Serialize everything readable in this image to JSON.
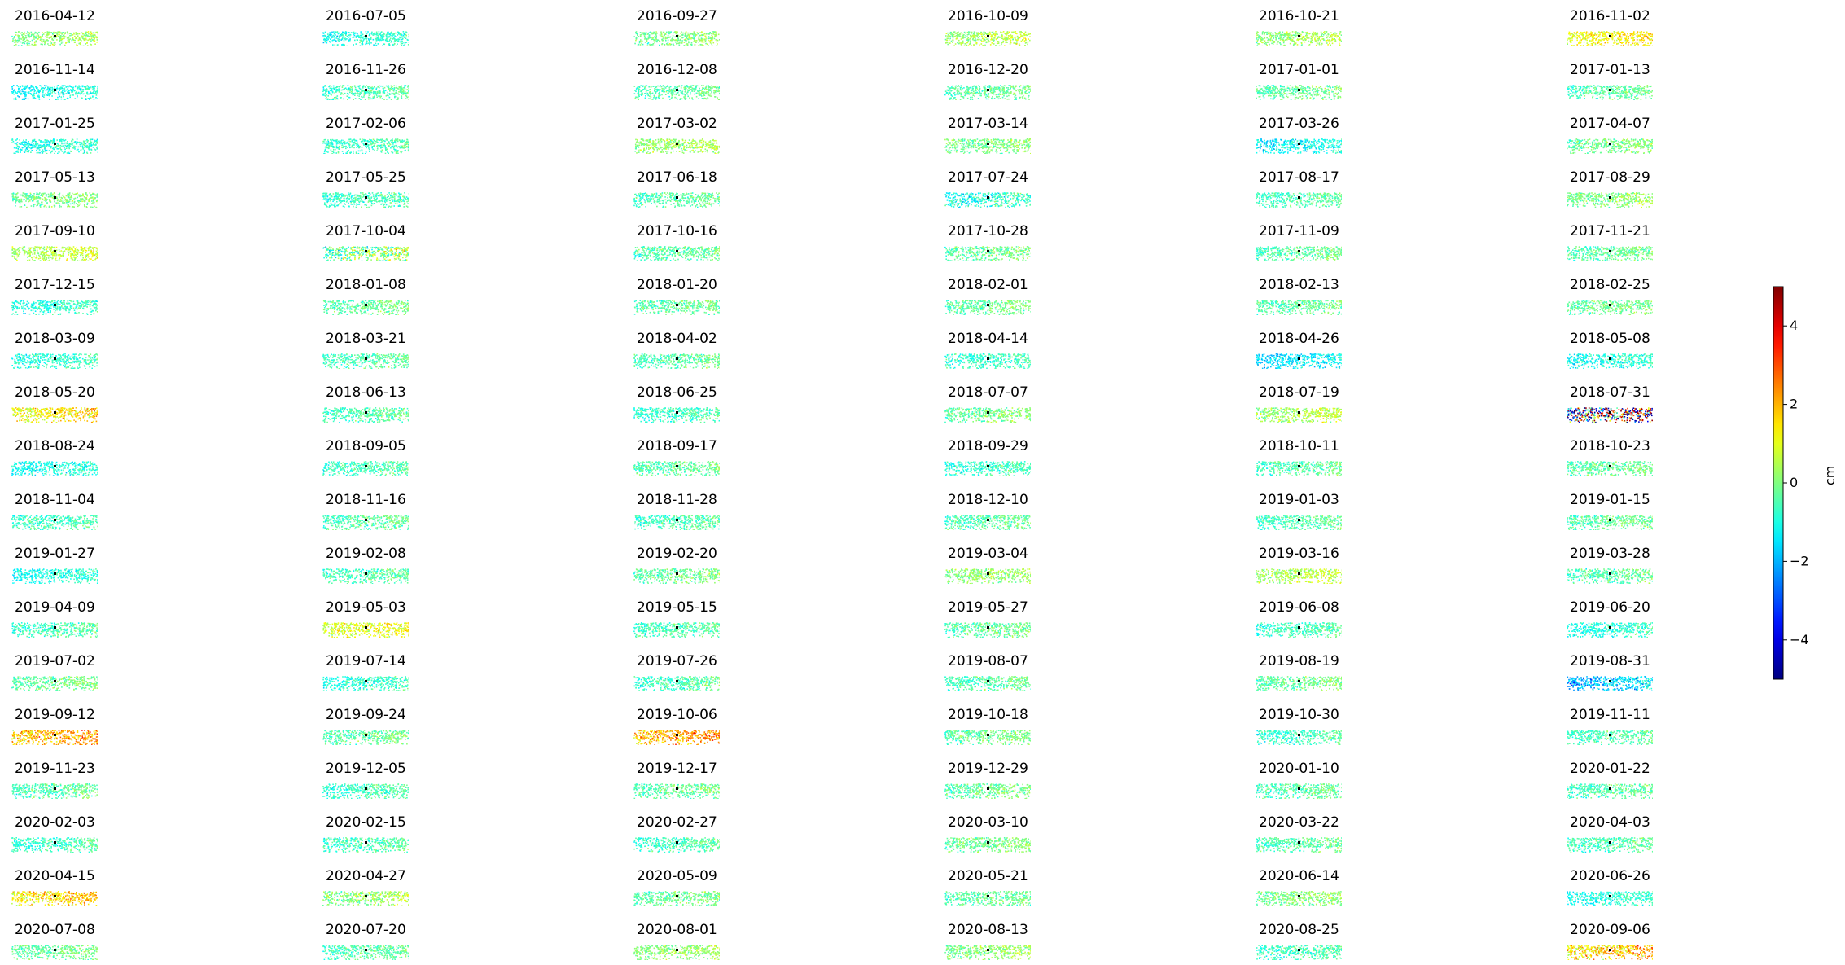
{
  "chart_data": {
    "type": "heatmap",
    "description_type": "small-multiples displacement maps",
    "grid": false,
    "axes_visible": false,
    "colormap": "jet",
    "colorbar": {
      "label": "cm",
      "range": [
        -5,
        5
      ],
      "ticks": [
        -4,
        -2,
        0,
        2,
        4
      ],
      "tick_labels": [
        "−4",
        "−2",
        "0",
        "2",
        "4"
      ],
      "placement": "right"
    },
    "columns": 6,
    "panels": [
      {
        "title": "2016-04-12",
        "mean": 0.2,
        "spread": 0.9
      },
      {
        "title": "2016-07-05",
        "mean": -0.9,
        "spread": 0.8
      },
      {
        "title": "2016-09-27",
        "mean": 0.0,
        "spread": 0.9
      },
      {
        "title": "2016-10-09",
        "mean": 0.4,
        "spread": 0.9
      },
      {
        "title": "2016-10-21",
        "mean": 0.3,
        "spread": 0.9
      },
      {
        "title": "2016-11-02",
        "mean": 1.3,
        "spread": 0.9
      },
      {
        "title": "2016-11-14",
        "mean": -1.1,
        "spread": 0.8
      },
      {
        "title": "2016-11-26",
        "mean": -0.5,
        "spread": 0.8
      },
      {
        "title": "2016-12-08",
        "mean": -0.4,
        "spread": 0.8
      },
      {
        "title": "2016-12-20",
        "mean": -0.3,
        "spread": 0.8
      },
      {
        "title": "2017-01-01",
        "mean": -0.2,
        "spread": 0.8
      },
      {
        "title": "2017-01-13",
        "mean": -0.4,
        "spread": 0.8
      },
      {
        "title": "2017-01-25",
        "mean": -0.9,
        "spread": 0.8
      },
      {
        "title": "2017-02-06",
        "mean": -0.6,
        "spread": 0.8
      },
      {
        "title": "2017-03-02",
        "mean": 0.3,
        "spread": 0.9
      },
      {
        "title": "2017-03-14",
        "mean": 0.0,
        "spread": 0.8
      },
      {
        "title": "2017-03-26",
        "mean": -1.2,
        "spread": 0.9
      },
      {
        "title": "2017-04-07",
        "mean": -0.1,
        "spread": 0.8
      },
      {
        "title": "2017-05-13",
        "mean": -0.1,
        "spread": 0.8
      },
      {
        "title": "2017-05-25",
        "mean": -0.6,
        "spread": 0.8
      },
      {
        "title": "2017-06-18",
        "mean": -0.4,
        "spread": 0.8
      },
      {
        "title": "2017-07-24",
        "mean": -0.9,
        "spread": 1.0
      },
      {
        "title": "2017-08-17",
        "mean": -0.5,
        "spread": 0.8
      },
      {
        "title": "2017-08-29",
        "mean": 0.1,
        "spread": 0.8
      },
      {
        "title": "2017-09-10",
        "mean": 0.6,
        "spread": 0.9
      },
      {
        "title": "2017-10-04",
        "mean": 0.0,
        "spread": 1.8
      },
      {
        "title": "2017-10-16",
        "mean": -0.4,
        "spread": 0.8
      },
      {
        "title": "2017-10-28",
        "mean": -0.2,
        "spread": 0.9
      },
      {
        "title": "2017-11-09",
        "mean": -0.3,
        "spread": 0.8
      },
      {
        "title": "2017-11-21",
        "mean": -0.3,
        "spread": 0.8
      },
      {
        "title": "2017-12-15",
        "mean": -0.8,
        "spread": 0.8
      },
      {
        "title": "2018-01-08",
        "mean": -0.3,
        "spread": 0.8
      },
      {
        "title": "2018-01-20",
        "mean": -0.3,
        "spread": 0.8
      },
      {
        "title": "2018-02-01",
        "mean": -0.2,
        "spread": 0.8
      },
      {
        "title": "2018-02-13",
        "mean": -0.3,
        "spread": 0.8
      },
      {
        "title": "2018-02-25",
        "mean": -0.2,
        "spread": 0.8
      },
      {
        "title": "2018-03-09",
        "mean": -0.8,
        "spread": 0.8
      },
      {
        "title": "2018-03-21",
        "mean": -0.5,
        "spread": 0.8
      },
      {
        "title": "2018-04-02",
        "mean": -0.4,
        "spread": 0.8
      },
      {
        "title": "2018-04-14",
        "mean": -0.7,
        "spread": 0.8
      },
      {
        "title": "2018-04-26",
        "mean": -1.4,
        "spread": 0.9
      },
      {
        "title": "2018-05-08",
        "mean": -1.0,
        "spread": 0.9
      },
      {
        "title": "2018-05-20",
        "mean": 1.4,
        "spread": 1.2
      },
      {
        "title": "2018-06-13",
        "mean": -0.5,
        "spread": 0.8
      },
      {
        "title": "2018-06-25",
        "mean": -0.7,
        "spread": 0.8
      },
      {
        "title": "2018-07-07",
        "mean": -0.1,
        "spread": 0.8
      },
      {
        "title": "2018-07-19",
        "mean": 0.4,
        "spread": 0.9
      },
      {
        "title": "2018-07-31",
        "mean": 0.0,
        "spread": 3.6
      },
      {
        "title": "2018-08-24",
        "mean": -1.0,
        "spread": 0.8
      },
      {
        "title": "2018-09-05",
        "mean": -0.6,
        "spread": 0.8
      },
      {
        "title": "2018-09-17",
        "mean": -0.3,
        "spread": 0.8
      },
      {
        "title": "2018-09-29",
        "mean": -0.7,
        "spread": 0.8
      },
      {
        "title": "2018-10-11",
        "mean": -0.4,
        "spread": 0.8
      },
      {
        "title": "2018-10-23",
        "mean": -0.3,
        "spread": 0.8
      },
      {
        "title": "2018-11-04",
        "mean": -0.6,
        "spread": 0.8
      },
      {
        "title": "2018-11-16",
        "mean": -0.4,
        "spread": 0.8
      },
      {
        "title": "2018-11-28",
        "mean": -0.5,
        "spread": 0.8
      },
      {
        "title": "2018-12-10",
        "mean": -0.4,
        "spread": 0.8
      },
      {
        "title": "2019-01-03",
        "mean": -0.5,
        "spread": 0.8
      },
      {
        "title": "2019-01-15",
        "mean": -0.3,
        "spread": 0.8
      },
      {
        "title": "2019-01-27",
        "mean": -1.0,
        "spread": 0.8
      },
      {
        "title": "2019-02-08",
        "mean": -0.5,
        "spread": 0.8
      },
      {
        "title": "2019-02-20",
        "mean": -0.2,
        "spread": 0.8
      },
      {
        "title": "2019-03-04",
        "mean": 0.2,
        "spread": 0.8
      },
      {
        "title": "2019-03-16",
        "mean": 0.5,
        "spread": 0.9
      },
      {
        "title": "2019-03-28",
        "mean": -0.4,
        "spread": 0.8
      },
      {
        "title": "2019-04-09",
        "mean": -0.6,
        "spread": 0.8
      },
      {
        "title": "2019-05-03",
        "mean": 1.0,
        "spread": 0.9
      },
      {
        "title": "2019-05-15",
        "mean": -0.5,
        "spread": 0.8
      },
      {
        "title": "2019-05-27",
        "mean": -0.3,
        "spread": 0.8
      },
      {
        "title": "2019-06-08",
        "mean": -0.6,
        "spread": 0.8
      },
      {
        "title": "2019-06-20",
        "mean": -0.9,
        "spread": 0.8
      },
      {
        "title": "2019-07-02",
        "mean": -0.2,
        "spread": 0.8
      },
      {
        "title": "2019-07-14",
        "mean": -0.8,
        "spread": 0.8
      },
      {
        "title": "2019-07-26",
        "mean": -0.5,
        "spread": 0.9
      },
      {
        "title": "2019-08-07",
        "mean": -0.4,
        "spread": 0.8
      },
      {
        "title": "2019-08-19",
        "mean": -0.2,
        "spread": 0.8
      },
      {
        "title": "2019-08-31",
        "mean": -1.8,
        "spread": 1.2
      },
      {
        "title": "2019-09-12",
        "mean": 2.0,
        "spread": 1.3
      },
      {
        "title": "2019-09-24",
        "mean": -0.3,
        "spread": 0.8
      },
      {
        "title": "2019-10-06",
        "mean": 2.2,
        "spread": 1.2
      },
      {
        "title": "2019-10-18",
        "mean": -0.2,
        "spread": 0.8
      },
      {
        "title": "2019-10-30",
        "mean": -0.6,
        "spread": 0.8
      },
      {
        "title": "2019-11-11",
        "mean": -0.5,
        "spread": 0.8
      },
      {
        "title": "2019-11-23",
        "mean": -0.4,
        "spread": 0.8
      },
      {
        "title": "2019-12-05",
        "mean": -0.6,
        "spread": 0.8
      },
      {
        "title": "2019-12-17",
        "mean": -0.3,
        "spread": 0.8
      },
      {
        "title": "2019-12-29",
        "mean": -0.2,
        "spread": 0.8
      },
      {
        "title": "2020-01-10",
        "mean": -0.4,
        "spread": 0.8
      },
      {
        "title": "2020-01-22",
        "mean": -0.5,
        "spread": 0.8
      },
      {
        "title": "2020-02-03",
        "mean": -0.6,
        "spread": 0.8
      },
      {
        "title": "2020-02-15",
        "mean": -0.5,
        "spread": 0.8
      },
      {
        "title": "2020-02-27",
        "mean": -0.6,
        "spread": 0.8
      },
      {
        "title": "2020-03-10",
        "mean": -0.1,
        "spread": 0.8
      },
      {
        "title": "2020-03-22",
        "mean": -0.4,
        "spread": 0.8
      },
      {
        "title": "2020-04-03",
        "mean": -0.5,
        "spread": 0.8
      },
      {
        "title": "2020-04-15",
        "mean": 1.6,
        "spread": 1.1
      },
      {
        "title": "2020-04-27",
        "mean": 0.2,
        "spread": 0.9
      },
      {
        "title": "2020-05-09",
        "mean": -0.2,
        "spread": 0.8
      },
      {
        "title": "2020-05-21",
        "mean": -0.3,
        "spread": 0.8
      },
      {
        "title": "2020-06-14",
        "mean": 0.0,
        "spread": 0.8
      },
      {
        "title": "2020-06-26",
        "mean": -0.9,
        "spread": 0.8
      },
      {
        "title": "2020-07-08",
        "mean": -0.2,
        "spread": 0.8
      },
      {
        "title": "2020-07-20",
        "mean": -0.4,
        "spread": 0.8
      },
      {
        "title": "2020-08-01",
        "mean": 0.2,
        "spread": 0.8
      },
      {
        "title": "2020-08-13",
        "mean": 0.1,
        "spread": 0.8
      },
      {
        "title": "2020-08-25",
        "mean": -0.6,
        "spread": 0.9
      },
      {
        "title": "2020-09-06",
        "mean": 1.8,
        "spread": 1.4
      }
    ]
  }
}
